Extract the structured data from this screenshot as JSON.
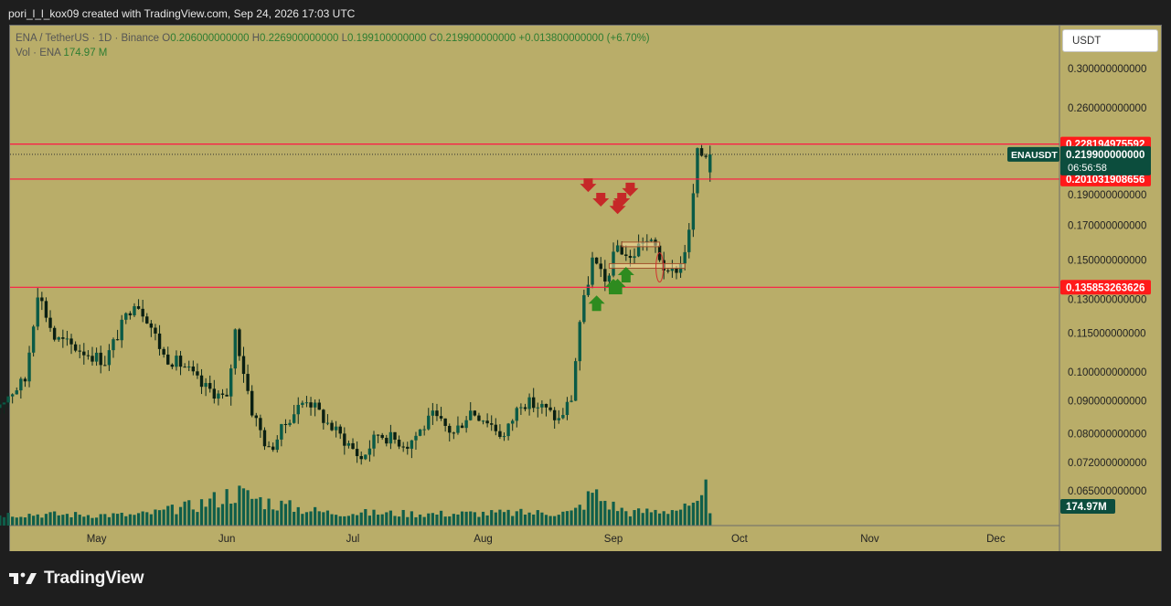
{
  "header": {
    "caption": "pori_l_l_kox09 created with TradingView.com, Sep 24, 2026 17:03 UTC"
  },
  "legend": {
    "symbol": "ENA / TetherUS · 1D · Binance",
    "open_label": "O",
    "open": "0.206000000000",
    "high_label": "H",
    "high": "0.226900000000",
    "low_label": "L",
    "low": "0.199100000000",
    "close_label": "C",
    "close": "0.219900000000",
    "change": "+0.013800000000 (+6.70%)",
    "vol_label": "Vol · ENA",
    "vol": "174.97 M"
  },
  "currency_button": "USDT",
  "brand": {
    "name": "TradingView"
  },
  "colors": {
    "background": "#b9ad69",
    "up": "#0a5a46",
    "down": "#0a1f12",
    "hline": "#ff1744",
    "volume": "#0f5e4a",
    "price_tag": "#0c4d3d",
    "arrow_down": "#c62828",
    "arrow_up": "#2e8b1f"
  },
  "chart_data": {
    "type": "candlestick",
    "symbol": "ENAUSDT",
    "timeframe": "1D",
    "y_scale": "log",
    "y_ticks": [
      "0.300000000000",
      "0.260000000000",
      "0.228194975592",
      "0.219900000000",
      "0.201031908656",
      "0.190000000000",
      "0.170000000000",
      "0.150000000000",
      "0.135853263626",
      "0.130000000000",
      "0.115000000000",
      "0.100000000000",
      "0.090000000000",
      "0.080000000000",
      "0.072000000000",
      "0.065000000000"
    ],
    "y_tick_values": [
      0.3,
      0.26,
      0.19,
      0.17,
      0.15,
      0.13,
      0.115,
      0.1,
      0.09,
      0.08,
      0.072,
      0.065
    ],
    "x_tick_labels": [
      "May",
      "Jun",
      "Jul",
      "Aug",
      "Sep",
      "Oct",
      "Nov",
      "Dec"
    ],
    "horizontal_levels": [
      {
        "price": 0.228194975592,
        "label": "0.228194975592"
      },
      {
        "price": 0.201031908656,
        "label": "0.201031908656"
      },
      {
        "price": 0.135853263626,
        "label": "0.135853263626"
      }
    ],
    "last_price": {
      "label": "ENAUSDT",
      "price": "0.219900000000",
      "countdown": "06:56:58"
    },
    "volume_last": "174.97M",
    "candles_anchor_closes": [
      [
        "04-06",
        0.087
      ],
      [
        "04-10",
        0.092
      ],
      [
        "04-14",
        0.097
      ],
      [
        "04-17",
        0.134
      ],
      [
        "04-21",
        0.113
      ],
      [
        "04-25",
        0.11
      ],
      [
        "04-29",
        0.107
      ],
      [
        "05-03",
        0.104
      ],
      [
        "05-07",
        0.118
      ],
      [
        "05-10",
        0.13
      ],
      [
        "05-13",
        0.122
      ],
      [
        "05-17",
        0.106
      ],
      [
        "05-22",
        0.102
      ],
      [
        "05-26",
        0.095
      ],
      [
        "05-29",
        0.093
      ],
      [
        "06-01",
        0.09
      ],
      [
        "06-03",
        0.116
      ],
      [
        "06-07",
        0.087
      ],
      [
        "06-11",
        0.075
      ],
      [
        "06-16",
        0.085
      ],
      [
        "06-20",
        0.091
      ],
      [
        "06-25",
        0.083
      ],
      [
        "06-30",
        0.077
      ],
      [
        "07-03",
        0.073
      ],
      [
        "07-07",
        0.08
      ],
      [
        "07-14",
        0.077
      ],
      [
        "07-20",
        0.085
      ],
      [
        "07-25",
        0.08
      ],
      [
        "07-29",
        0.087
      ],
      [
        "08-02",
        0.084
      ],
      [
        "08-06",
        0.079
      ],
      [
        "08-10",
        0.09
      ],
      [
        "08-15",
        0.088
      ],
      [
        "08-19",
        0.084
      ],
      [
        "08-22",
        0.091
      ],
      [
        "08-24",
        0.12
      ],
      [
        "08-27",
        0.15
      ],
      [
        "08-30",
        0.138
      ],
      [
        "09-02",
        0.158
      ],
      [
        "09-05",
        0.15
      ],
      [
        "09-08",
        0.162
      ],
      [
        "09-11",
        0.157
      ],
      [
        "09-14",
        0.141
      ],
      [
        "09-17",
        0.148
      ],
      [
        "09-19",
        0.165
      ],
      [
        "09-21",
        0.22
      ],
      [
        "09-24",
        0.2199
      ]
    ],
    "volume_profile_M": [
      [
        "04-06",
        35
      ],
      [
        "05-10",
        30
      ],
      [
        "06-03",
        120
      ],
      [
        "06-25",
        40
      ],
      [
        "07-20",
        35
      ],
      [
        "08-22",
        40
      ],
      [
        "08-27",
        120
      ],
      [
        "09-05",
        40
      ],
      [
        "09-21",
        60
      ],
      [
        "09-24",
        175
      ]
    ],
    "annotations": {
      "down_arrows": [
        [
          "08-26",
          0.195
        ],
        [
          "08-29",
          0.185
        ],
        [
          "09-02",
          0.18
        ],
        [
          "09-03",
          0.185
        ],
        [
          "09-05",
          0.192
        ]
      ],
      "up_arrows": [
        [
          "08-28",
          0.128
        ],
        [
          "09-01",
          0.136
        ],
        [
          "09-02",
          0.136
        ],
        [
          "09-04",
          0.142
        ]
      ],
      "boxes": [
        [
          "09-03",
          "09-12",
          0.16,
          0.158
        ],
        [
          "08-31",
          "09-18",
          0.148,
          0.146
        ]
      ]
    }
  }
}
